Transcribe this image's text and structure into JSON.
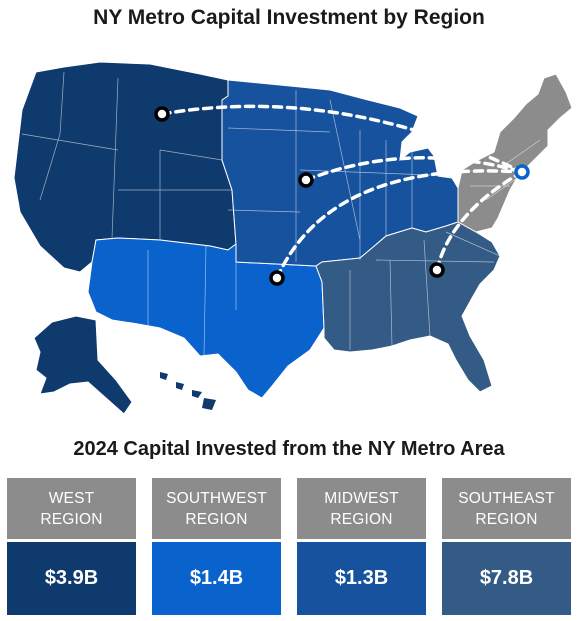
{
  "title": "NY Metro Capital Investment by Region",
  "subtitle": "2024 Capital Invested from the NY Metro Area",
  "colors": {
    "west": "#0f3a6e",
    "southwest": "#0a62cc",
    "midwest": "#16529e",
    "southeast": "#345a86",
    "northeast": "#8c8c8c",
    "header_gray": "#8c8c8c"
  },
  "regions": [
    {
      "name_line1": "WEST",
      "name_line2": "REGION",
      "value": "$3.9B"
    },
    {
      "name_line1": "SOUTHWEST",
      "name_line2": "REGION",
      "value": "$1.4B"
    },
    {
      "name_line1": "MIDWEST",
      "name_line2": "REGION",
      "value": "$1.3B"
    },
    {
      "name_line1": "SOUTHEAST",
      "name_line2": "REGION",
      "value": "$7.8B"
    }
  ]
}
